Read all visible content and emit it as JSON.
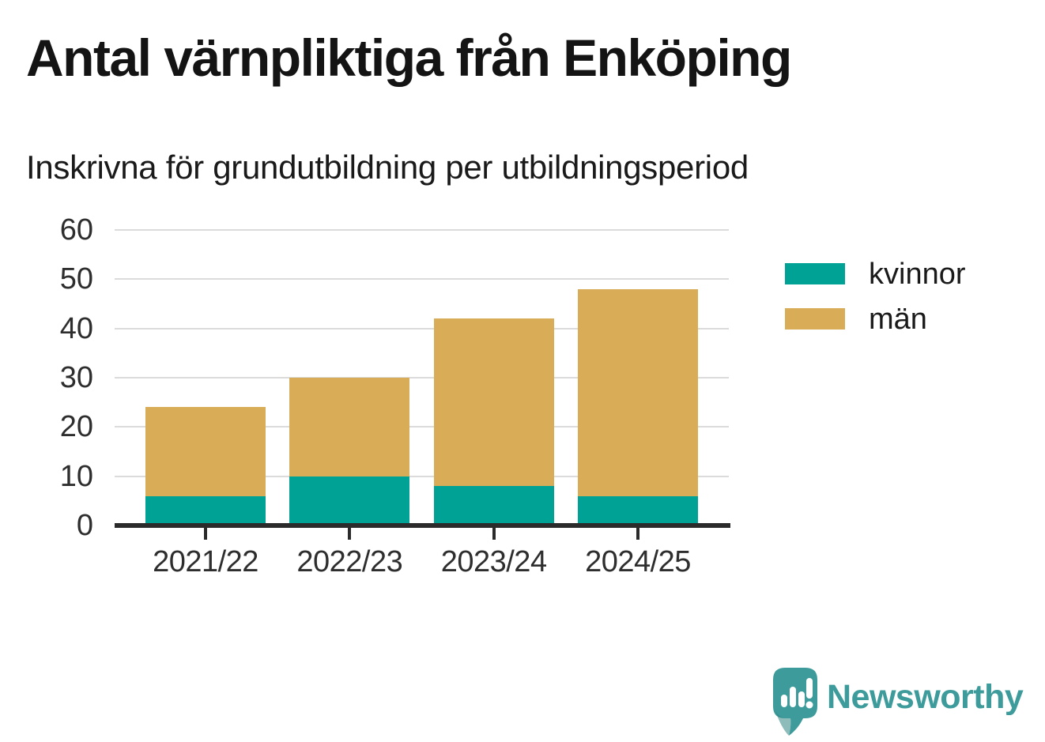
{
  "title": "Antal värnpliktiga från Enköping",
  "subtitle": "Inskrivna för grundutbildning per utbildningsperiod",
  "logo": {
    "name": "Newsworthy",
    "icon": "speech-bubble-bar-chart-icon"
  },
  "colors": {
    "kvinnor": "#00a296",
    "man": "#d9ac57",
    "axis": "#2b2b2b",
    "gridline": "#dbdbdb",
    "tick_text": "#2e2e2e",
    "title_text": "#141414",
    "logo_teal": "#3d9c9b",
    "background": "#ffffff"
  },
  "chart_data": {
    "type": "bar",
    "stacked": true,
    "title": "Antal värnpliktiga från Enköping",
    "subtitle": "Inskrivna för grundutbildning per utbildningsperiod",
    "categories": [
      "2021/22",
      "2022/23",
      "2023/24",
      "2024/25"
    ],
    "series": [
      {
        "name": "kvinnor",
        "color": "#00a296",
        "values": [
          6,
          10,
          8,
          6
        ]
      },
      {
        "name": "män",
        "color": "#d9ac57",
        "values": [
          18,
          20,
          34,
          42
        ]
      }
    ],
    "totals": [
      24,
      30,
      42,
      48
    ],
    "xlabel": "",
    "ylabel": "",
    "ylim": [
      0,
      60
    ],
    "yticks": [
      0,
      10,
      20,
      30,
      40,
      50,
      60
    ],
    "grid": true,
    "legend_position": "right"
  }
}
